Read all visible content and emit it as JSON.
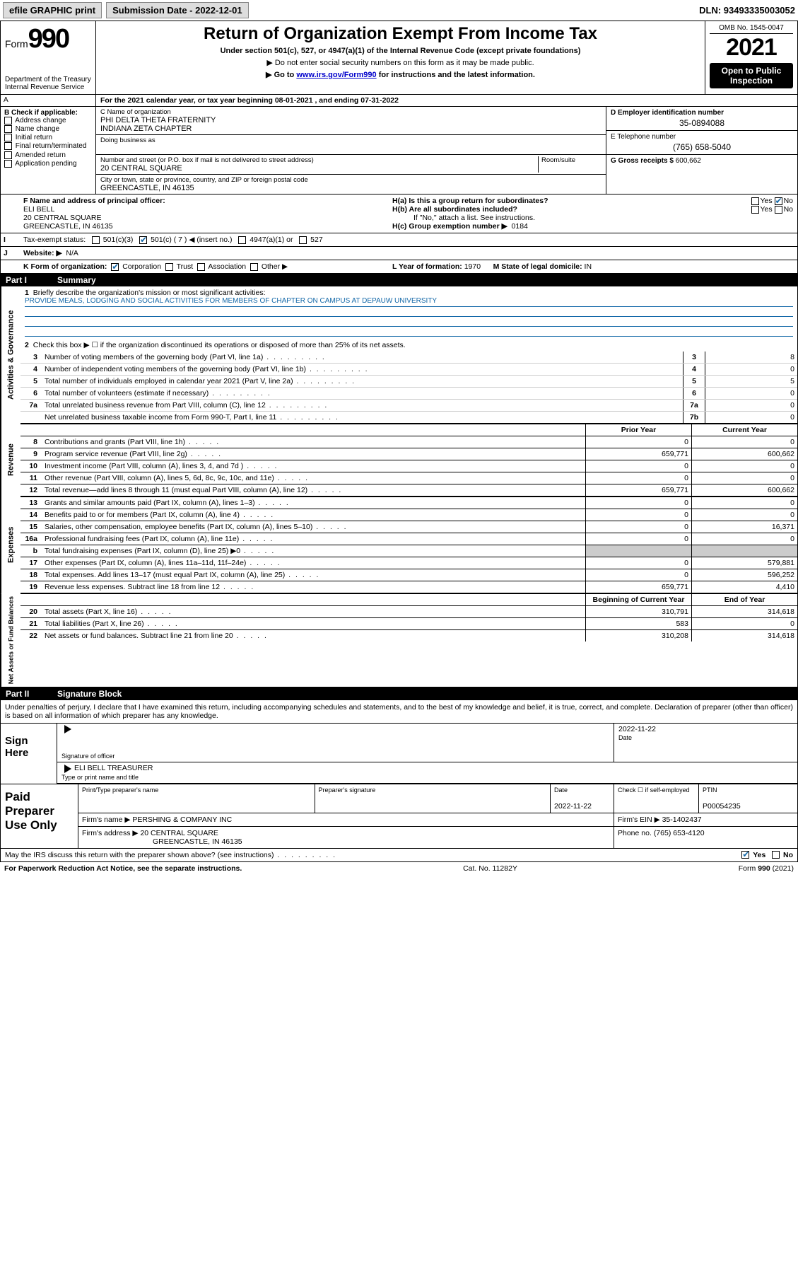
{
  "topbar": {
    "efile": "efile GRAPHIC print",
    "subdate_label": "Submission Date - 2022-12-01",
    "dln": "DLN: 93493335003052"
  },
  "header": {
    "form_word": "Form",
    "form_num": "990",
    "dept": "Department of the Treasury",
    "irs": "Internal Revenue Service",
    "title": "Return of Organization Exempt From Income Tax",
    "subtitle": "Under section 501(c), 527, or 4947(a)(1) of the Internal Revenue Code (except private foundations)",
    "note1": "▶ Do not enter social security numbers on this form as it may be made public.",
    "note2_pre": "▶ Go to ",
    "note2_link": "www.irs.gov/Form990",
    "note2_post": " for instructions and the latest information.",
    "omb": "OMB No. 1545-0047",
    "year": "2021",
    "open": "Open to Public Inspection"
  },
  "A": {
    "label": "A",
    "text": "For the 2021 calendar year, or tax year beginning 08-01-2021   , and ending 07-31-2022"
  },
  "B": {
    "label": "B Check if applicable:",
    "opts": [
      "Address change",
      "Name change",
      "Initial return",
      "Final return/terminated",
      "Amended return",
      "Application pending"
    ]
  },
  "C": {
    "name_lbl": "C Name of organization",
    "name1": "PHI DELTA THETA FRATERNITY",
    "name2": "INDIANA ZETA CHAPTER",
    "dba_lbl": "Doing business as",
    "addr_lbl": "Number and street (or P.O. box if mail is not delivered to street address)",
    "room_lbl": "Room/suite",
    "addr": "20 CENTRAL SQUARE",
    "city_lbl": "City or town, state or province, country, and ZIP or foreign postal code",
    "city": "GREENCASTLE, IN  46135"
  },
  "D": {
    "lbl": "D Employer identification number",
    "val": "35-0894088"
  },
  "E": {
    "lbl": "E Telephone number",
    "val": "(765) 658-5040"
  },
  "G": {
    "lbl": "G Gross receipts $",
    "val": "600,662"
  },
  "F": {
    "lbl": "F  Name and address of principal officer:",
    "name": "ELI BELL",
    "addr1": "20 CENTRAL SQUARE",
    "addr2": "GREENCASTLE, IN  46135"
  },
  "H": {
    "a": "H(a)  Is this a group return for subordinates?",
    "b": "H(b)  Are all subordinates included?",
    "b_note": "If \"No,\" attach a list. See instructions.",
    "c_lbl": "H(c)  Group exemption number ▶",
    "c_val": "0184"
  },
  "I": {
    "lbl": "Tax-exempt status:",
    "c7": "501(c) ( 7 ) ◀ (insert no.)"
  },
  "J": {
    "lbl": "Website: ▶",
    "val": "N/A"
  },
  "K": {
    "lbl": "K Form of organization:",
    "corp": "Corporation",
    "trust": "Trust",
    "assoc": "Association",
    "other": "Other ▶"
  },
  "L": {
    "lbl": "L Year of formation:",
    "val": "1970"
  },
  "M": {
    "lbl": "M State of legal domicile:",
    "val": "IN"
  },
  "part1": {
    "pn": "Part I",
    "title": "Summary"
  },
  "summary": {
    "sec1_label": "Activities & Governance",
    "sec2_label": "Revenue",
    "sec3_label": "Expenses",
    "sec4_label": "Net Assets or Fund Balances",
    "q1": "Briefly describe the organization's mission or most significant activities:",
    "mission": "PROVIDE MEALS, LODGING AND SOCIAL ACTIVITIES FOR MEMBERS OF CHAPTER ON CAMPUS AT DEPAUW UNIVERSITY",
    "q2": "Check this box ▶ ☐  if the organization discontinued its operations or disposed of more than 25% of its net assets.",
    "lines_gov": [
      {
        "n": "3",
        "d": "Number of voting members of the governing body (Part VI, line 1a)",
        "bn": "3",
        "v": "8"
      },
      {
        "n": "4",
        "d": "Number of independent voting members of the governing body (Part VI, line 1b)",
        "bn": "4",
        "v": "0"
      },
      {
        "n": "5",
        "d": "Total number of individuals employed in calendar year 2021 (Part V, line 2a)",
        "bn": "5",
        "v": "5"
      },
      {
        "n": "6",
        "d": "Total number of volunteers (estimate if necessary)",
        "bn": "6",
        "v": "0"
      },
      {
        "n": "7a",
        "d": "Total unrelated business revenue from Part VIII, column (C), line 12",
        "bn": "7a",
        "v": "0"
      },
      {
        "n": "",
        "d": "Net unrelated business taxable income from Form 990-T, Part I, line 11",
        "bn": "7b",
        "v": "0"
      }
    ],
    "col_prior": "Prior Year",
    "col_curr": "Current Year",
    "lines_rev": [
      {
        "n": "8",
        "d": "Contributions and grants (Part VIII, line 1h)",
        "v1": "0",
        "v2": "0"
      },
      {
        "n": "9",
        "d": "Program service revenue (Part VIII, line 2g)",
        "v1": "659,771",
        "v2": "600,662"
      },
      {
        "n": "10",
        "d": "Investment income (Part VIII, column (A), lines 3, 4, and 7d )",
        "v1": "0",
        "v2": "0"
      },
      {
        "n": "11",
        "d": "Other revenue (Part VIII, column (A), lines 5, 6d, 8c, 9c, 10c, and 11e)",
        "v1": "0",
        "v2": "0"
      },
      {
        "n": "12",
        "d": "Total revenue—add lines 8 through 11 (must equal Part VIII, column (A), line 12)",
        "v1": "659,771",
        "v2": "600,662"
      }
    ],
    "lines_exp": [
      {
        "n": "13",
        "d": "Grants and similar amounts paid (Part IX, column (A), lines 1–3)",
        "v1": "0",
        "v2": "0"
      },
      {
        "n": "14",
        "d": "Benefits paid to or for members (Part IX, column (A), line 4)",
        "v1": "0",
        "v2": "0"
      },
      {
        "n": "15",
        "d": "Salaries, other compensation, employee benefits (Part IX, column (A), lines 5–10)",
        "v1": "0",
        "v2": "16,371"
      },
      {
        "n": "16a",
        "d": "Professional fundraising fees (Part IX, column (A), line 11e)",
        "v1": "0",
        "v2": "0"
      },
      {
        "n": "b",
        "d": "Total fundraising expenses (Part IX, column (D), line 25) ▶0",
        "v1": "",
        "v2": "",
        "shade": true
      },
      {
        "n": "17",
        "d": "Other expenses (Part IX, column (A), lines 11a–11d, 11f–24e)",
        "v1": "0",
        "v2": "579,881"
      },
      {
        "n": "18",
        "d": "Total expenses. Add lines 13–17 (must equal Part IX, column (A), line 25)",
        "v1": "0",
        "v2": "596,252"
      },
      {
        "n": "19",
        "d": "Revenue less expenses. Subtract line 18 from line 12",
        "v1": "659,771",
        "v2": "4,410"
      }
    ],
    "col_begin": "Beginning of Current Year",
    "col_end": "End of Year",
    "lines_net": [
      {
        "n": "20",
        "d": "Total assets (Part X, line 16)",
        "v1": "310,791",
        "v2": "314,618"
      },
      {
        "n": "21",
        "d": "Total liabilities (Part X, line 26)",
        "v1": "583",
        "v2": "0"
      },
      {
        "n": "22",
        "d": "Net assets or fund balances. Subtract line 21 from line 20",
        "v1": "310,208",
        "v2": "314,618"
      }
    ]
  },
  "part2": {
    "pn": "Part II",
    "title": "Signature Block"
  },
  "sig": {
    "decl": "Under penalties of perjury, I declare that I have examined this return, including accompanying schedules and statements, and to the best of my knowledge and belief, it is true, correct, and complete. Declaration of preparer (other than officer) is based on all information of which preparer has any knowledge.",
    "sign_here": "Sign Here",
    "sig_officer": "Signature of officer",
    "date": "2022-11-22",
    "date_lbl": "Date",
    "name": "ELI BELL TREASURER",
    "name_lbl": "Type or print name and title"
  },
  "paid": {
    "title": "Paid Preparer Use Only",
    "r1": {
      "c1": "Print/Type preparer's name",
      "c2": "Preparer's signature",
      "c3_lbl": "Date",
      "c3": "2022-11-22",
      "c4_lbl": "Check ☐ if self-employed",
      "c5_lbl": "PTIN",
      "c5": "P00054235"
    },
    "r2": {
      "firm_lbl": "Firm's name   ▶",
      "firm": "PERSHING & COMPANY INC",
      "ein_lbl": "Firm's EIN ▶",
      "ein": "35-1402437"
    },
    "r3": {
      "addr_lbl": "Firm's address ▶",
      "addr1": "20 CENTRAL SQUARE",
      "addr2": "GREENCASTLE, IN  46135",
      "ph_lbl": "Phone no.",
      "ph": "(765) 653-4120"
    }
  },
  "bottom": {
    "q": "May the IRS discuss this return with the preparer shown above? (see instructions)",
    "yes": "Yes",
    "no": "No"
  },
  "footer": {
    "l": "For Paperwork Reduction Act Notice, see the separate instructions.",
    "c": "Cat. No. 11282Y",
    "r_pre": "Form ",
    "r_b": "990",
    "r_post": " (2021)"
  }
}
